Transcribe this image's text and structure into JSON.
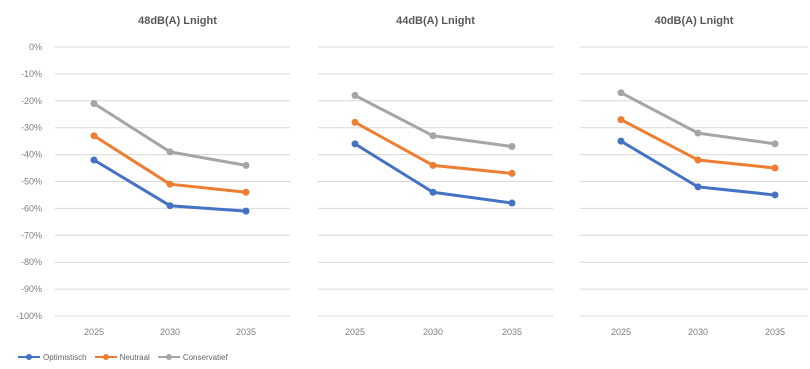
{
  "colors": {
    "Optimistisch": "#4472c4",
    "Neutraal": "#ed7d31",
    "Conservatief": "#a5a5a5",
    "grid": "#d9d9d9",
    "tick_text": "#7f7f7f",
    "title_text": "#595959"
  },
  "legend": {
    "items": [
      "Optimistisch",
      "Neutraal",
      "Conservatief"
    ],
    "placement": "bottom-left"
  },
  "chart_data": [
    {
      "type": "line",
      "title": "48dB(A) Lnight",
      "categories": [
        "2025",
        "2030",
        "2035"
      ],
      "ylim": [
        -100,
        0
      ],
      "yticks": [
        "0%",
        "-10%",
        "-20%",
        "-30%",
        "-40%",
        "-50%",
        "-60%",
        "-70%",
        "-80%",
        "-90%",
        "-100%"
      ],
      "grid": true,
      "series": [
        {
          "name": "Optimistisch",
          "values": [
            -42,
            -59,
            -61
          ]
        },
        {
          "name": "Neutraal",
          "values": [
            -33,
            -51,
            -54
          ]
        },
        {
          "name": "Conservatief",
          "values": [
            -21,
            -39,
            -44
          ]
        }
      ]
    },
    {
      "type": "line",
      "title": "44dB(A) Lnight",
      "categories": [
        "2025",
        "2030",
        "2035"
      ],
      "ylim": [
        -100,
        0
      ],
      "grid": true,
      "series": [
        {
          "name": "Optimistisch",
          "values": [
            -36,
            -54,
            -58
          ]
        },
        {
          "name": "Neutraal",
          "values": [
            -28,
            -44,
            -47
          ]
        },
        {
          "name": "Conservatief",
          "values": [
            -18,
            -33,
            -37
          ]
        }
      ]
    },
    {
      "type": "line",
      "title": "40dB(A) Lnight",
      "categories": [
        "2025",
        "2030",
        "2035"
      ],
      "ylim": [
        -100,
        0
      ],
      "grid": true,
      "series": [
        {
          "name": "Optimistisch",
          "values": [
            -35,
            -52,
            -55
          ]
        },
        {
          "name": "Neutraal",
          "values": [
            -27,
            -42,
            -45
          ]
        },
        {
          "name": "Conservatief",
          "values": [
            -17,
            -32,
            -36
          ]
        }
      ]
    }
  ]
}
